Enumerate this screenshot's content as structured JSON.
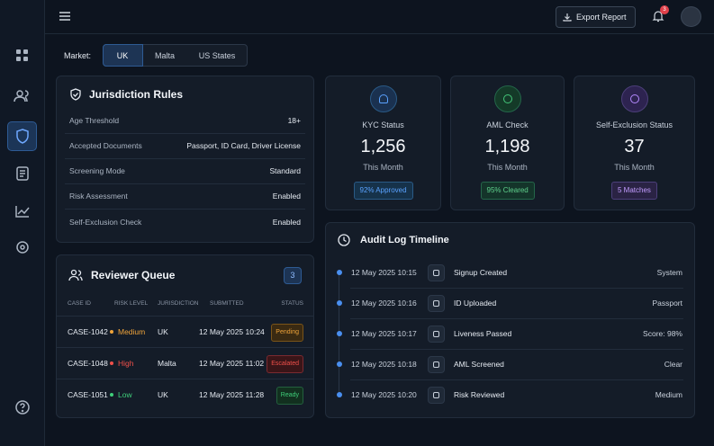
{
  "header": {
    "export_button": "Export Report",
    "notification_count": 3
  },
  "market": {
    "label": "Market:",
    "options": [
      "UK",
      "Malta",
      "US States"
    ]
  },
  "jurisdiction_rules": {
    "title": "Jurisdiction Rules",
    "rows": [
      [
        "Age Threshold",
        "18+"
      ],
      [
        "Accepted Documents",
        "Passport, ID Card, Driver License"
      ],
      [
        "Screening Mode",
        "Standard"
      ],
      [
        "Risk Assessment",
        "Enabled"
      ],
      [
        "Self-Exclusion Check",
        "Enabled"
      ]
    ]
  },
  "stats": [
    {
      "title": "KYC Status",
      "value": "1,256",
      "period": "This Month",
      "badge": "92% Approved"
    },
    {
      "title": "AML Check",
      "value": "1,198",
      "period": "This Month",
      "badge": "95% Cleared"
    },
    {
      "title": "Self-Exclusion Status",
      "value": 37,
      "period": "This Month",
      "badge": "5 Matches"
    }
  ],
  "reviewer_queue": {
    "title": "Reviewer Queue",
    "count": 3,
    "columns": [
      "CASE ID",
      "RISK LEVEL",
      "JURISDICTION",
      "SUBMITTED",
      "STATUS"
    ],
    "rows": [
      [
        "CASE-1042",
        "Medium",
        "UK",
        "12 May 2025 10:24",
        "Pending"
      ],
      [
        "CASE-1048",
        "High",
        "Malta",
        "12 May 2025 11:02",
        "Escalated"
      ],
      [
        "CASE-1051",
        "Low",
        "UK",
        "12 May 2025 11:28",
        "Ready"
      ]
    ]
  },
  "audit_log": {
    "title": "Audit Log Timeline",
    "entries": [
      [
        "12 May 2025 10:15",
        "Signup Created",
        "System"
      ],
      [
        "12 May 2025 10:16",
        "ID Uploaded",
        "Passport"
      ],
      [
        "12 May 2025 10:17",
        "Liveness Passed",
        "Score: 98%"
      ],
      [
        "12 May 2025 10:18",
        "AML Screened",
        "Clear"
      ],
      [
        "12 May 2025 10:20",
        "Risk Reviewed",
        "Medium"
      ]
    ]
  }
}
